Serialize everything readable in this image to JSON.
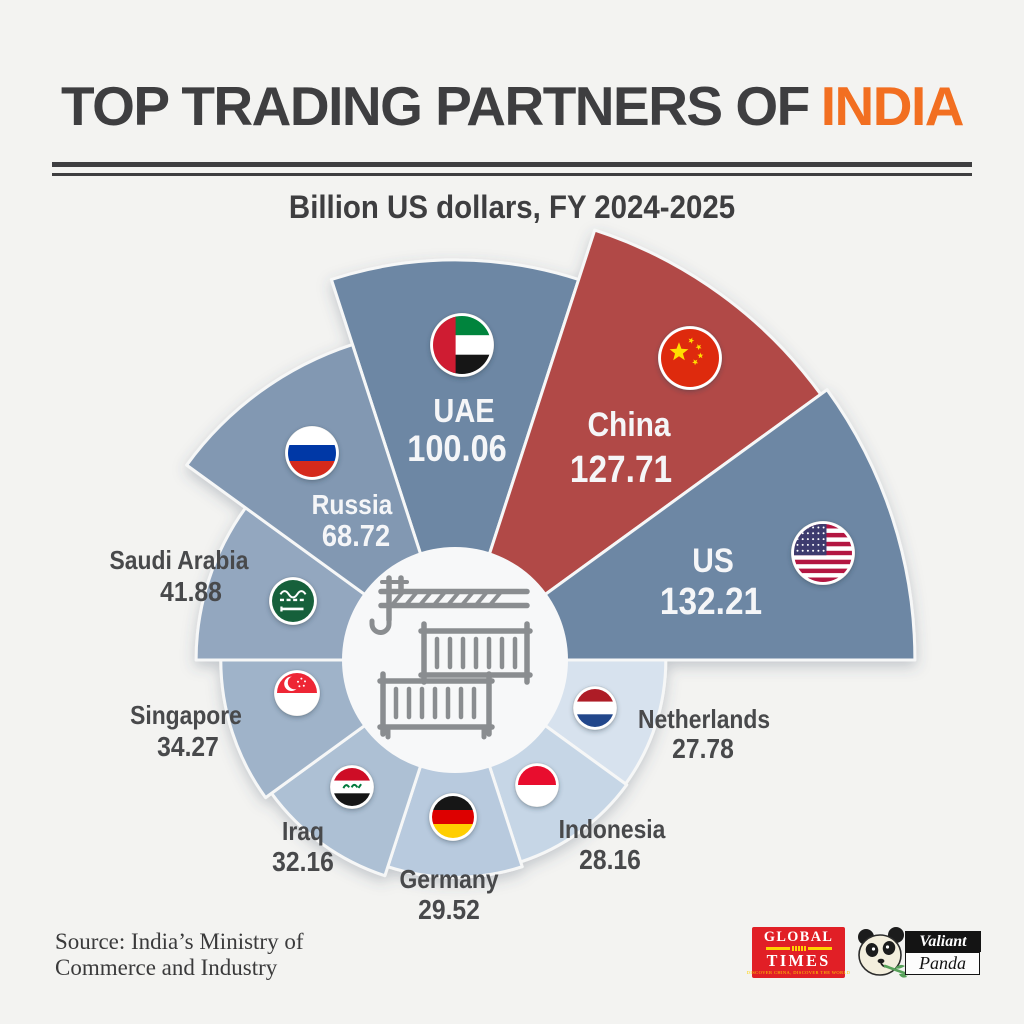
{
  "header": {
    "title_prefix": "TOP TRADING PARTNERS OF",
    "title_highlight": "INDIA",
    "title_color": "#3e3e40",
    "accent_color": "#f26f21"
  },
  "subtitle": "Billion US dollars, FY 2024-2025",
  "source": {
    "line1": "Source: India’s Ministry of",
    "line2": "Commerce and Industry"
  },
  "logos": {
    "global_times": {
      "line1": "GLOBAL",
      "line2": "TIMES",
      "tagline": "DISCOVER CHINA, DISCOVER THE WORLD",
      "bg_color": "#e11f26"
    },
    "valiant_panda": {
      "line1": "Valiant",
      "line2": "Panda"
    }
  },
  "chart_data": {
    "type": "polar_area_rose",
    "title": "Top trading partners of India",
    "unit": "billion US dollars",
    "period": "FY 2024-2025",
    "radius_scale": "sqrt(value)",
    "note": "10 equal 36-degree sectors, clockwise from top; label colors: inside=white, outside=dark gray",
    "inside_label_color": "#f5f6f8",
    "outside_label_color": "#48494b",
    "center_icon": "cargo-crane-with-containers",
    "series": [
      {
        "name": "UAE",
        "value": 100.06,
        "color": "#6d87a4",
        "flag": "uae",
        "label": "inside"
      },
      {
        "name": "China",
        "value": 127.71,
        "color": "#b14a47",
        "flag": "china",
        "label": "inside"
      },
      {
        "name": "US",
        "value": 132.21,
        "color": "#6d87a4",
        "flag": "us",
        "label": "inside"
      },
      {
        "name": "Netherlands",
        "value": 27.78,
        "color": "#d7e2ee",
        "flag": "netherlands",
        "label": "outside"
      },
      {
        "name": "Indonesia",
        "value": 28.16,
        "color": "#c6d6e6",
        "flag": "indonesia",
        "label": "outside"
      },
      {
        "name": "Germany",
        "value": 29.52,
        "color": "#b8cade",
        "flag": "germany",
        "label": "outside"
      },
      {
        "name": "Iraq",
        "value": 32.16,
        "color": "#adc0d4",
        "flag": "iraq",
        "label": "outside"
      },
      {
        "name": "Singapore",
        "value": 34.27,
        "color": "#9fb3c9",
        "flag": "singapore",
        "label": "outside"
      },
      {
        "name": "Saudi Arabia",
        "value": 41.88,
        "color": "#93a7bf",
        "flag": "saudi-arabia",
        "label": "outside"
      },
      {
        "name": "Russia",
        "value": 68.72,
        "color": "#8298b2",
        "flag": "russia",
        "label": "inside"
      }
    ]
  }
}
